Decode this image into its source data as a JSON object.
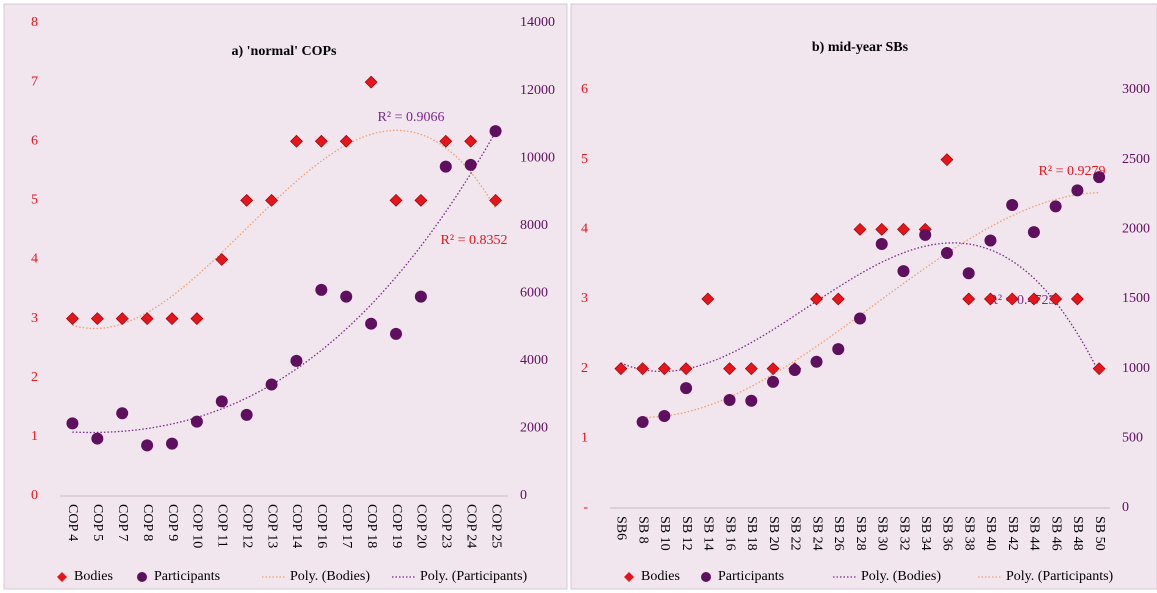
{
  "chart_data": [
    {
      "type": "scatter",
      "title": "a) 'normal' COPs",
      "categories": [
        "COP 4",
        "COP 5",
        "COP 7",
        "COP 8",
        "COP 9",
        "COP 10",
        "COP 11",
        "COP 12",
        "COP 13",
        "COP 14",
        "COP 16",
        "COP 17",
        "COP 18",
        "COP 19",
        "COP 20",
        "COP 23",
        "COP 24",
        "COP 25"
      ],
      "ylim": [
        0,
        8
      ],
      "yticks": [
        0,
        1,
        2,
        3,
        4,
        5,
        6,
        7,
        8
      ],
      "y2lim": [
        0,
        14000
      ],
      "y2ticks": [
        0,
        2000,
        4000,
        6000,
        8000,
        10000,
        12000,
        14000
      ],
      "series": [
        {
          "name": "Bodies",
          "color": "#e8141b",
          "marker": "diamond",
          "values": [
            3,
            3,
            3,
            3,
            3,
            3,
            4,
            5,
            5,
            6,
            6,
            6,
            7,
            5,
            5,
            6,
            6,
            5
          ],
          "trendline": {
            "name": "Poly. (Bodies)",
            "color": "#f0a070",
            "label": "R² = 0.8352"
          }
        },
        {
          "name": "Participants",
          "color": "#5e0f5e",
          "marker": "circle",
          "axis": "y2",
          "values": [
            2150,
            1700,
            2450,
            1500,
            1550,
            2200,
            2800,
            2400,
            3300,
            4000,
            6100,
            5900,
            5100,
            4800,
            5900,
            9750,
            9800,
            10800
          ],
          "trendline": {
            "name": "Poly. (Participants)",
            "color": "#7a2a8a",
            "label": "R² = 0.9066"
          }
        }
      ]
    },
    {
      "type": "scatter",
      "title": "b) mid-year SBs",
      "categories": [
        "SB6",
        "SB 8",
        "SB 10",
        "SB 12",
        "SB 14",
        "SB 16",
        "SB 18",
        "SB 20",
        "SB 22",
        "SB 24",
        "SB 26",
        "SB 28",
        "SB 30",
        "SB 32",
        "SB 34",
        "SB 36",
        "SB 38",
        "SB 40",
        "SB 42",
        "SB 44",
        "SB 46",
        "SB 48",
        "SB 50"
      ],
      "ylim": [
        0,
        6
      ],
      "yticks": [
        {
          "value": 0,
          "label": "-"
        },
        1,
        2,
        3,
        4,
        5,
        6
      ],
      "y2lim": [
        0,
        3000
      ],
      "y2ticks": [
        0,
        500,
        1000,
        1500,
        2000,
        2500,
        3000
      ],
      "series": [
        {
          "name": "Bodies",
          "color": "#e8141b",
          "marker": "diamond",
          "values": [
            2,
            2,
            2,
            2,
            3,
            2,
            2,
            2,
            2,
            3,
            3,
            4,
            4,
            4,
            4,
            5,
            3,
            3,
            3,
            3,
            3,
            3,
            2
          ],
          "trendline": {
            "name": "Poly. (Bodies)",
            "color": "#7a2a8a",
            "label": "R² = 0.4723"
          }
        },
        {
          "name": "Participants",
          "color": "#5e0f5e",
          "marker": "circle",
          "axis": "y2",
          "values": [
            null,
            617,
            660,
            860,
            null,
            775,
            770,
            905,
            990,
            1050,
            1140,
            1360,
            1895,
            1700,
            1960,
            1830,
            1685,
            1920,
            2175,
            1980,
            2165,
            2280,
            2375
          ],
          "trendline": {
            "name": "Poly. (Participants)",
            "color": "#f0a070",
            "label": "R² = 0.9279"
          }
        }
      ]
    }
  ]
}
